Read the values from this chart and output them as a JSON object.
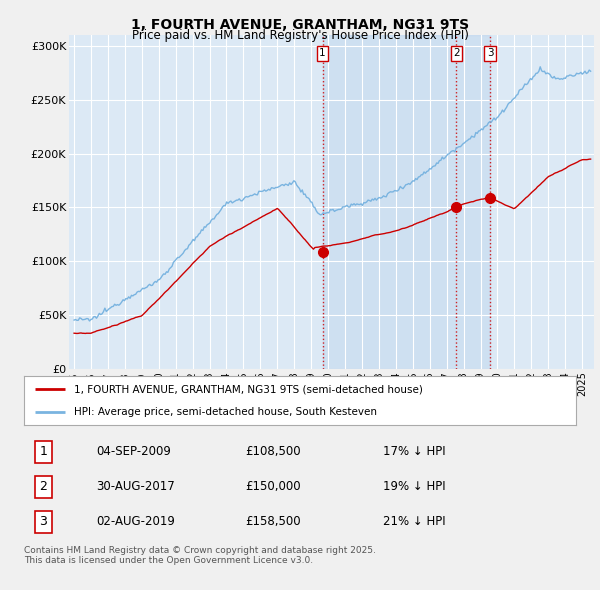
{
  "title": "1, FOURTH AVENUE, GRANTHAM, NG31 9TS",
  "subtitle": "Price paid vs. HM Land Registry's House Price Index (HPI)",
  "background_color": "#f0f0f0",
  "plot_bg_color": "#dce9f5",
  "plot_bg_shaded": "#c8ddf0",
  "grid_color": "#ffffff",
  "hpi_color": "#7ab4e0",
  "price_color": "#cc0000",
  "ylim": [
    0,
    310000
  ],
  "yticks": [
    0,
    50000,
    100000,
    150000,
    200000,
    250000,
    300000
  ],
  "ytick_labels": [
    "£0",
    "£50K",
    "£100K",
    "£150K",
    "£200K",
    "£250K",
    "£300K"
  ],
  "sale_year_floats": [
    2009.67,
    2017.58,
    2019.58
  ],
  "sale_prices": [
    108500,
    150000,
    158500
  ],
  "sale_labels": [
    "1",
    "2",
    "3"
  ],
  "vline_color": "#cc0000",
  "legend_label_red": "1, FOURTH AVENUE, GRANTHAM, NG31 9TS (semi-detached house)",
  "legend_label_blue": "HPI: Average price, semi-detached house, South Kesteven",
  "table_rows": [
    [
      "1",
      "04-SEP-2009",
      "£108,500",
      "17% ↓ HPI"
    ],
    [
      "2",
      "30-AUG-2017",
      "£150,000",
      "19% ↓ HPI"
    ],
    [
      "3",
      "02-AUG-2019",
      "£158,500",
      "21% ↓ HPI"
    ]
  ],
  "footnote": "Contains HM Land Registry data © Crown copyright and database right 2025.\nThis data is licensed under the Open Government Licence v3.0.",
  "xstart_year": 1995,
  "xend_year": 2025
}
